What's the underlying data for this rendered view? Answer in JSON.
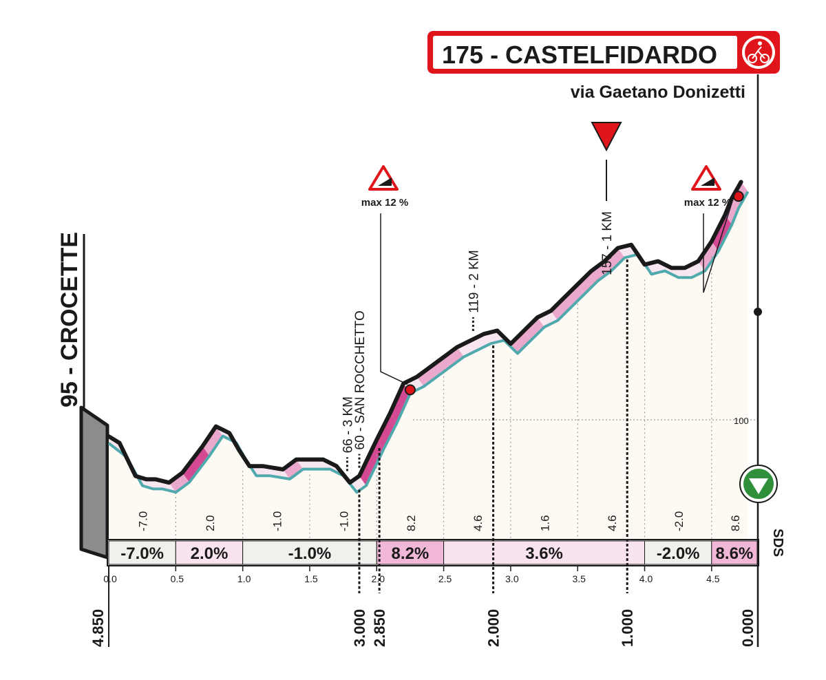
{
  "chart_data": {
    "type": "area",
    "finish": {
      "label": "175 - CASTELFIDARDO",
      "street": "via Gaetano Donizetti"
    },
    "start_label": "95 - CROCETTE",
    "flamme_rouge": {
      "label": "157 - 1 KM"
    },
    "sds_label": "SDS",
    "reference_altitude": "100",
    "climbs": [
      {
        "label": "max 12 %",
        "x_km": 2.25
      },
      {
        "label": "max 12 %",
        "x_km": 4.7
      }
    ],
    "waypoints": [
      {
        "label": "66 - 3 KM",
        "x_km": 1.78
      },
      {
        "label": "60 - SAN ROCCHETTO",
        "x_km": 1.87
      },
      {
        "label": "119 - 2 KM",
        "x_km": 2.72
      }
    ],
    "profile": {
      "x": [
        0.0,
        0.08,
        0.2,
        0.28,
        0.35,
        0.45,
        0.55,
        0.7,
        0.8,
        0.9,
        0.97,
        1.05,
        1.15,
        1.3,
        1.4,
        1.5,
        1.6,
        1.7,
        1.8,
        1.87,
        2.0,
        2.1,
        2.2,
        2.3,
        2.4,
        2.5,
        2.6,
        2.7,
        2.8,
        2.9,
        3.0,
        3.1,
        3.2,
        3.3,
        3.4,
        3.5,
        3.6,
        3.7,
        3.8,
        3.9,
        4.0,
        4.1,
        4.2,
        4.3,
        4.4,
        4.5,
        4.6,
        4.65,
        4.72
      ],
      "y": [
        95,
        93,
        83,
        82,
        82,
        81,
        84,
        92,
        98,
        96,
        91,
        86,
        86,
        85,
        88,
        88,
        88,
        86,
        81,
        83,
        94,
        102,
        111,
        113,
        116,
        119,
        122,
        124,
        126,
        127,
        123,
        127,
        131,
        133,
        137,
        141,
        145,
        148,
        152,
        153,
        147,
        148,
        146,
        146,
        148,
        154,
        162,
        167,
        172
      ]
    },
    "segments": [
      {
        "label": "-7.0%",
        "from_km": 0.0,
        "to_km": 0.5
      },
      {
        "label": "2.0%",
        "from_km": 0.5,
        "to_km": 1.0
      },
      {
        "label": "-1.0%",
        "from_km": 1.0,
        "to_km": 2.0
      },
      {
        "label": "8.2%",
        "from_km": 2.0,
        "to_km": 2.5
      },
      {
        "label": "3.6%",
        "from_km": 2.5,
        "to_km": 4.0
      },
      {
        "label": "-2.0%",
        "from_km": 4.0,
        "to_km": 4.5
      },
      {
        "label": "8.6%",
        "from_km": 4.5,
        "to_km": 4.84
      }
    ],
    "sub_gradients": [
      {
        "label": "-7.0",
        "x_km": 0.25
      },
      {
        "label": "2.0",
        "x_km": 0.75
      },
      {
        "label": "-1.0",
        "x_km": 1.25
      },
      {
        "label": "-1.0",
        "x_km": 1.75
      },
      {
        "label": "8.2",
        "x_km": 2.25
      },
      {
        "label": "4.6",
        "x_km": 2.75
      },
      {
        "label": "1.6",
        "x_km": 3.25
      },
      {
        "label": "4.6",
        "x_km": 3.75
      },
      {
        "label": "-2.0",
        "x_km": 4.25
      },
      {
        "label": "8.6",
        "x_km": 4.67
      }
    ],
    "x_ticks": [
      "0.0",
      "0.5",
      "1.0",
      "1.5",
      "2.0",
      "2.5",
      "3.0",
      "3.5",
      "4.0",
      "4.5"
    ],
    "x_tick_values": [
      0.0,
      0.5,
      1.0,
      1.5,
      2.0,
      2.5,
      3.0,
      3.5,
      4.0,
      4.5
    ],
    "remaining": [
      {
        "label": "4.850",
        "x_km": 0.0
      },
      {
        "label": "3.000",
        "x_km": 1.87
      },
      {
        "label": "2.850",
        "x_km": 2.02
      },
      {
        "label": "2.000",
        "x_km": 2.87
      },
      {
        "label": "1.000",
        "x_km": 3.87
      },
      {
        "label": "0.000",
        "x_km": 4.84
      }
    ],
    "xlim": [
      0,
      4.84
    ],
    "ylim": [
      40,
      230
    ],
    "colors": {
      "finish_red": "#e0151b",
      "profile_line": "#1a1a1a",
      "shadow_line": "#4fa9ad",
      "fill": "#fcfaf2",
      "pink_light": "#f7e6f0",
      "pink_mid": "#e9a8cc",
      "pink_dark": "#d44a92",
      "sds_green": "#2f8f3a",
      "start_grey": "#8c8c8c"
    }
  }
}
